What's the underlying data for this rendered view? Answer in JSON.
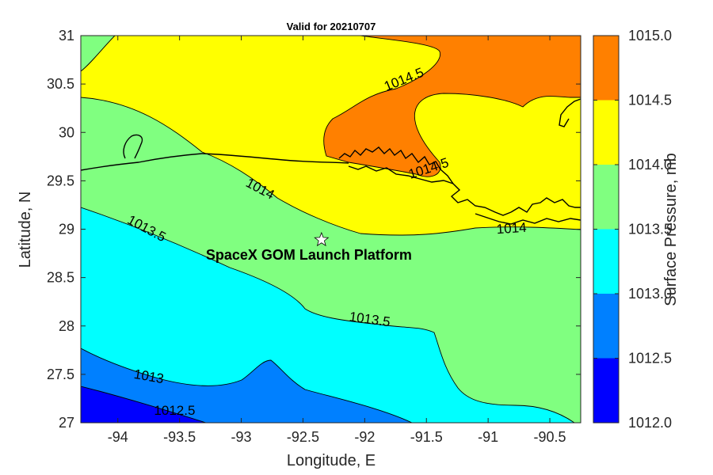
{
  "chart_data": {
    "type": "contour-map",
    "title": "Valid for 20210707",
    "xlabel": "Longitude, E",
    "ylabel": "Latitude, N",
    "colorbar_label": "Surface Pressure, mb",
    "xlim": [
      -94.3,
      -90.25
    ],
    "ylim": [
      27,
      31
    ],
    "xticks": [
      {
        "value": -94,
        "label": "-94"
      },
      {
        "value": -93.5,
        "label": "-93.5"
      },
      {
        "value": -93,
        "label": "-93"
      },
      {
        "value": -92.5,
        "label": "-92.5"
      },
      {
        "value": -92,
        "label": "-92"
      },
      {
        "value": -91.5,
        "label": "-91.5"
      },
      {
        "value": -91,
        "label": "-91"
      },
      {
        "value": -90.5,
        "label": "-90.5"
      }
    ],
    "yticks": [
      {
        "value": 27,
        "label": "27"
      },
      {
        "value": 27.5,
        "label": "27.5"
      },
      {
        "value": 28,
        "label": "28"
      },
      {
        "value": 28.5,
        "label": "28.5"
      },
      {
        "value": 29,
        "label": "29"
      },
      {
        "value": 29.5,
        "label": "29.5"
      },
      {
        "value": 30,
        "label": "30"
      },
      {
        "value": 30.5,
        "label": "30.5"
      },
      {
        "value": 31,
        "label": "31"
      }
    ],
    "colorbar": {
      "range": [
        1012.0,
        1015.0
      ],
      "bands": [
        {
          "from": 1012.0,
          "to": 1012.5,
          "color": "#0000ff"
        },
        {
          "from": 1012.5,
          "to": 1013.0,
          "color": "#0080ff"
        },
        {
          "from": 1013.0,
          "to": 1013.5,
          "color": "#00ffff"
        },
        {
          "from": 1013.5,
          "to": 1014.0,
          "color": "#80ff80"
        },
        {
          "from": 1014.0,
          "to": 1014.5,
          "color": "#ffff00"
        },
        {
          "from": 1014.5,
          "to": 1015.0,
          "color": "#ff8000"
        }
      ],
      "ticks": [
        {
          "value": 1012.0,
          "label": "1012.0"
        },
        {
          "value": 1012.5,
          "label": "1012.5"
        },
        {
          "value": 1013.0,
          "label": "1013.0"
        },
        {
          "value": 1013.5,
          "label": "1013.5"
        },
        {
          "value": 1014.0,
          "label": "1014.0"
        },
        {
          "value": 1014.5,
          "label": "1014.5"
        },
        {
          "value": 1015.0,
          "label": "1015.0"
        }
      ]
    },
    "contour_labels": [
      {
        "text": "1014.5",
        "lon": -91.68,
        "lat": 30.54,
        "angle": -22
      },
      {
        "text": "1014.5",
        "lon": -91.48,
        "lat": 29.62,
        "angle": -18
      },
      {
        "text": "1014",
        "lon": -92.85,
        "lat": 29.41,
        "angle": 28
      },
      {
        "text": "1014",
        "lon": -90.81,
        "lat": 29.0,
        "angle": -4
      },
      {
        "text": "1013.5",
        "lon": -93.77,
        "lat": 29.0,
        "angle": 28
      },
      {
        "text": "1013.5",
        "lon": -91.96,
        "lat": 28.06,
        "angle": 8
      },
      {
        "text": "1013",
        "lon": -93.75,
        "lat": 27.47,
        "angle": 10
      },
      {
        "text": "1012.5",
        "lon": -93.54,
        "lat": 27.12,
        "angle": 0
      }
    ],
    "marker": {
      "label": "SpaceX GOM Launch Platform",
      "lon": -92.35,
      "lat": 28.89,
      "symbol": "star"
    }
  }
}
